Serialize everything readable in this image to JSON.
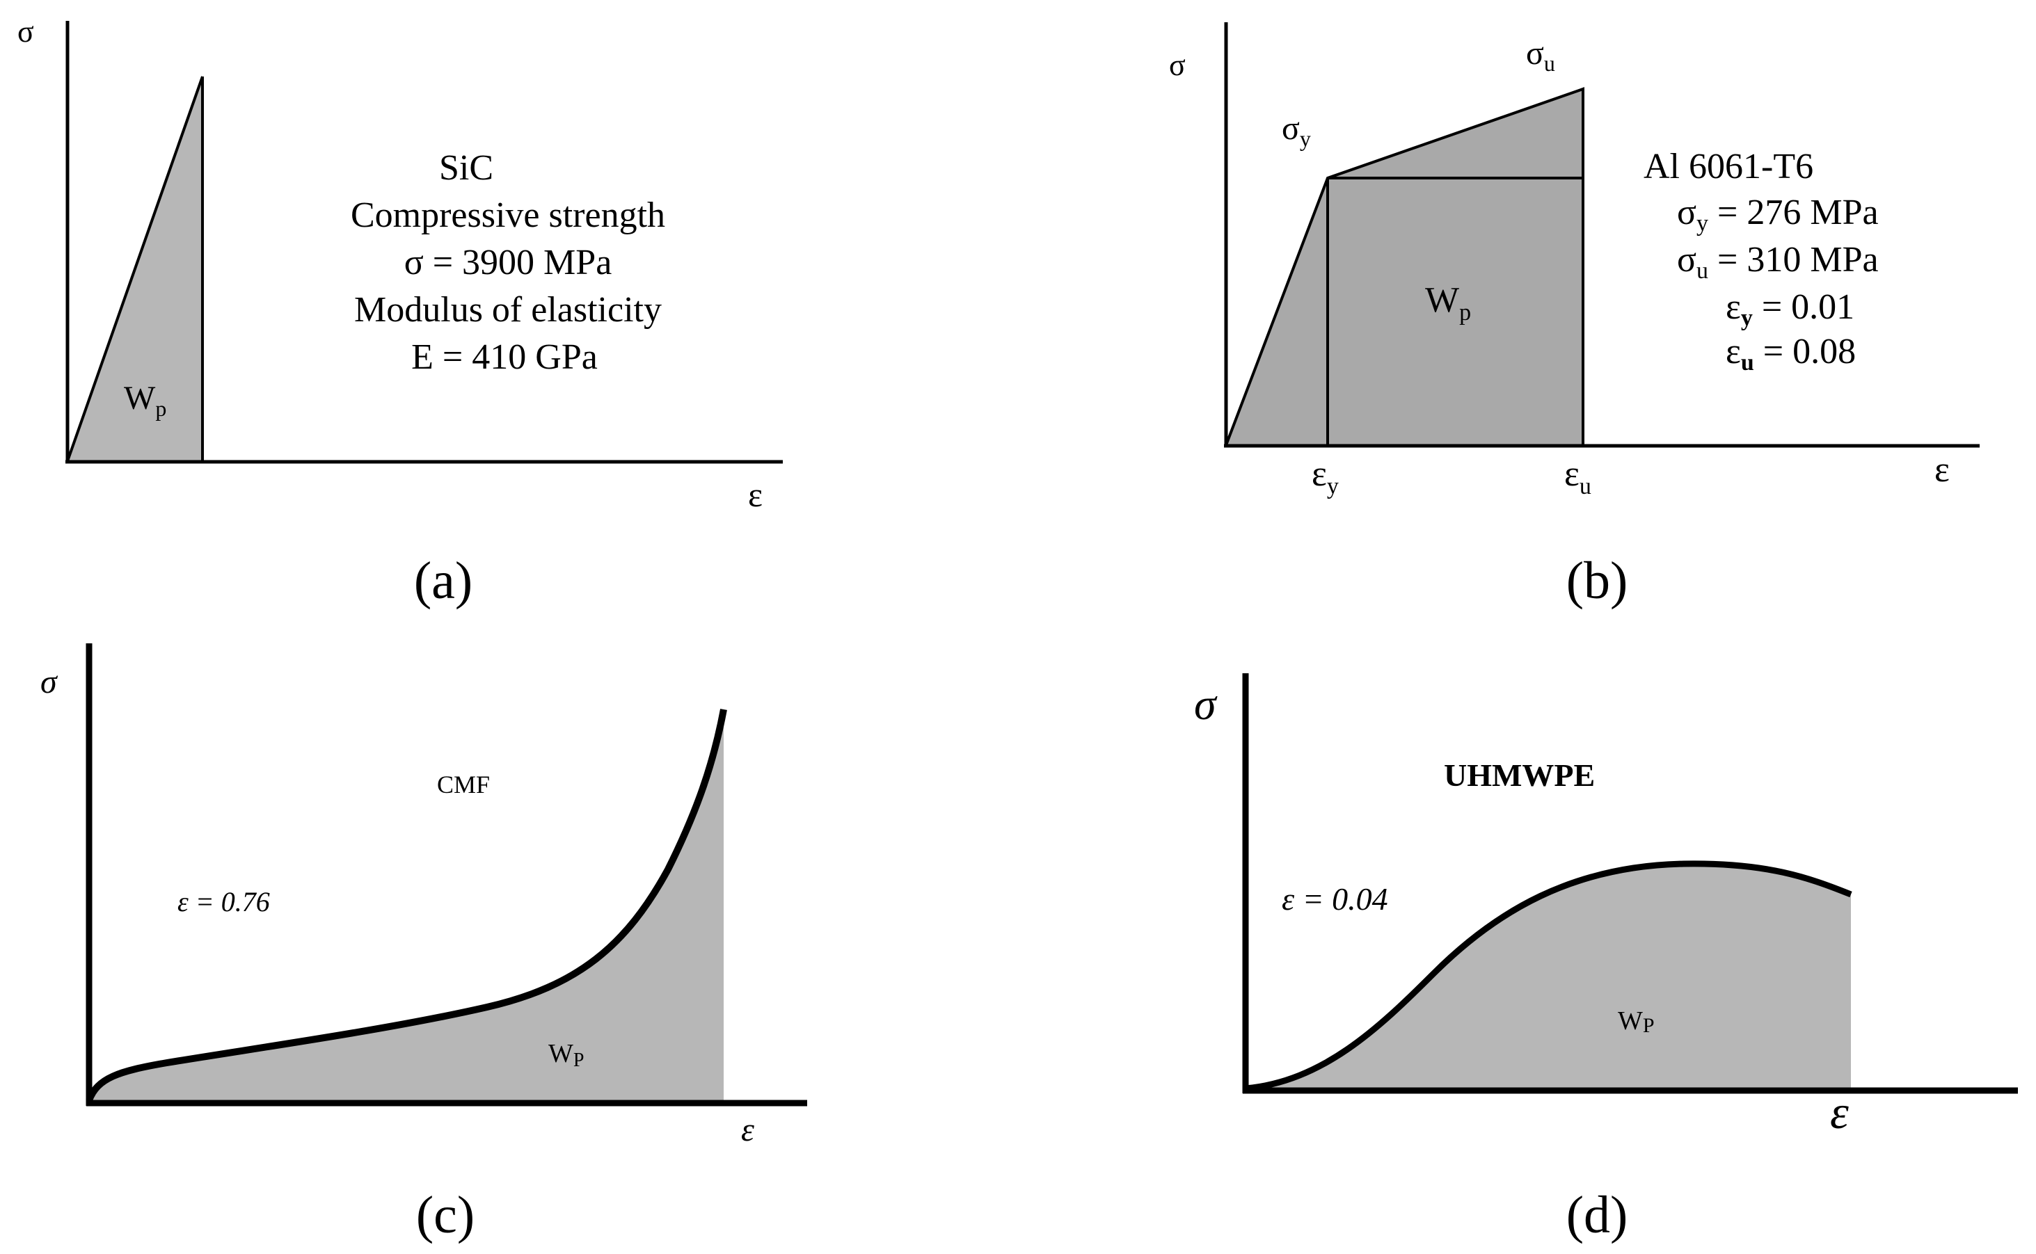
{
  "panels": {
    "a": {
      "caption": "(a)",
      "y_axis": "σ",
      "x_axis": "ε",
      "area_label": "W",
      "area_sub": "p",
      "material": "SiC",
      "prop1_name": "Compressive strength",
      "prop1_value": "σ = 3900 MPa",
      "prop2_name": "Modulus of elasticity",
      "prop2_value": "E = 410 GPa"
    },
    "b": {
      "caption": "(b)",
      "y_axis": "σ",
      "x_axis": "ε",
      "sigma_y": "σ",
      "sigma_y_sub": "y",
      "sigma_u": "σ",
      "sigma_u_sub": "u",
      "eps_y": "ε",
      "eps_y_sub": "y",
      "eps_u": "ε",
      "eps_u_sub": "u",
      "area_label": "W",
      "area_sub": "p",
      "material": "Al 6061-T6",
      "sy_lhs": "σ",
      "sy_sub": "y",
      "sy_rhs": " = 276 MPa",
      "su_lhs": "σ",
      "su_sub": "u",
      "su_rhs": " = 310 MPa",
      "ey_lhs": "ε",
      "ey_sub": "y",
      "ey_rhs": " = 0.01",
      "eu_lhs": "ε",
      "eu_sub": "u",
      "eu_rhs": " = 0.08"
    },
    "c": {
      "caption": "(c)",
      "y_axis": "σ",
      "x_axis": "ε",
      "material": "CMF",
      "strain": "ε = 0.76",
      "area_label": "W",
      "area_sub": "P"
    },
    "d": {
      "caption": "(d)",
      "y_axis": "σ",
      "x_axis": "ε",
      "material": "UHMWPE",
      "strain": "ε = 0.04",
      "area_label": "W",
      "area_sub": "P"
    }
  },
  "colors": {
    "fill": "#b7b7b7",
    "fill_b": "#a9a9a9",
    "line": "#000000"
  }
}
